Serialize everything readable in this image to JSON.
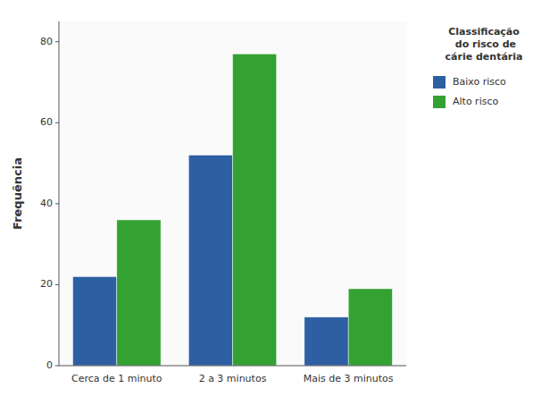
{
  "chart_data": {
    "type": "bar",
    "categories": [
      "Cerca de 1 minuto",
      "2 a 3 minutos",
      "Mais de 3 minutos"
    ],
    "series": [
      {
        "name": "Baixo risco",
        "color": "#2e5fa3",
        "values": [
          22,
          52,
          12
        ]
      },
      {
        "name": "Alto risco",
        "color": "#33a233",
        "values": [
          36,
          77,
          19
        ]
      }
    ],
    "y_label": "Frequência",
    "legend_title": "Classificação\n do risco de\ncárie dentária",
    "ylim": [
      0,
      85
    ],
    "yticks": [
      0,
      20,
      40,
      60,
      80
    ],
    "grid": false,
    "legend": "right"
  }
}
